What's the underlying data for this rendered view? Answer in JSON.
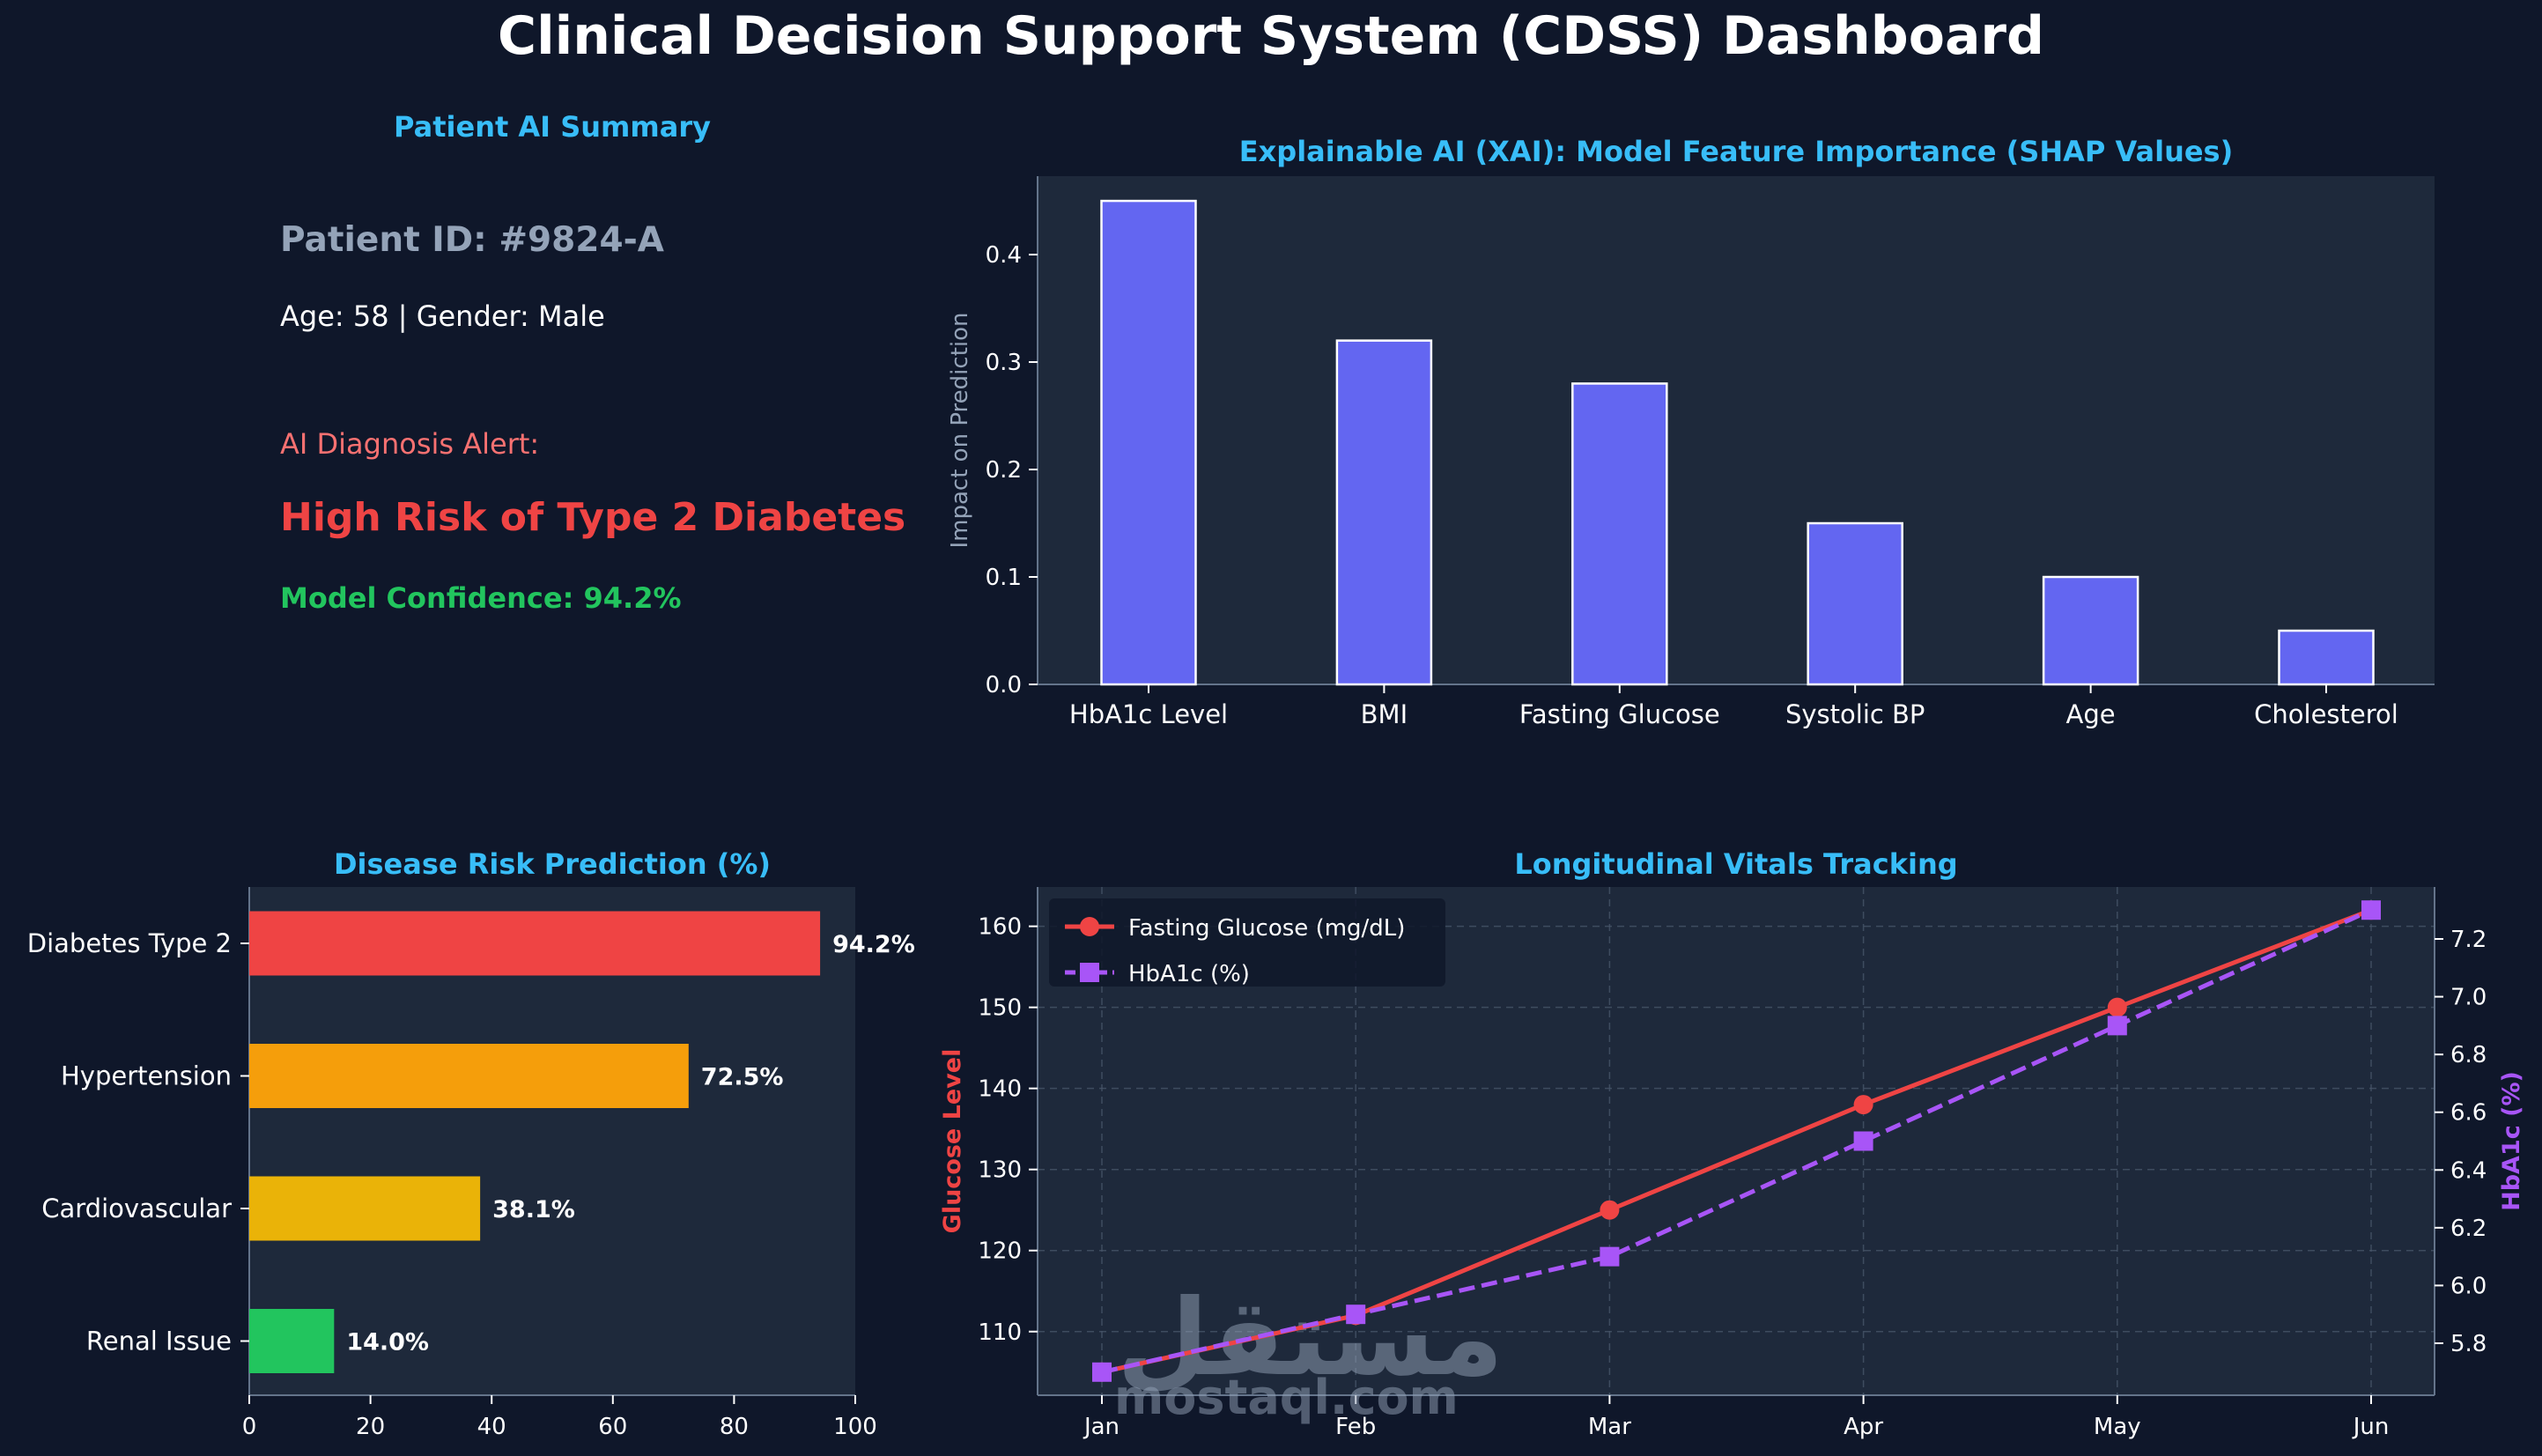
{
  "page": {
    "title": "Clinical Decision Support System (CDSS) Dashboard",
    "watermark": "mostaql.com",
    "watermark_arabic": "مستقل"
  },
  "colors": {
    "background": "#0f172a",
    "panel": "#1e293b",
    "accent_title": "#38bdf8",
    "shap_bar": "#6366f1",
    "glucose": "#ef4444",
    "hba1c": "#a855f7"
  },
  "summary": {
    "title": "Patient AI Summary",
    "patient_id": "Patient ID: #9824-A",
    "age_gender": "Age: 58 | Gender: Male",
    "alert_label": "AI Diagnosis Alert:",
    "alert_text": "High Risk of Type 2 Diabetes",
    "confidence": "Model Confidence: 94.2%"
  },
  "chart_data": [
    {
      "id": "shap",
      "type": "bar",
      "title": "Explainable AI (XAI): Model Feature Importance (SHAP Values)",
      "xlabel": "",
      "ylabel": "Impact on Prediction",
      "categories": [
        "HbA1c Level",
        "BMI",
        "Fasting Glucose",
        "Systolic BP",
        "Age",
        "Cholesterol"
      ],
      "values": [
        0.45,
        0.32,
        0.28,
        0.15,
        0.1,
        0.05
      ],
      "ylim": [
        0,
        0.473
      ],
      "yticks": [
        0.0,
        0.1,
        0.2,
        0.3,
        0.4
      ],
      "ytick_labels": [
        "0.0",
        "0.1",
        "0.2",
        "0.3",
        "0.4"
      ],
      "grid": false
    },
    {
      "id": "risk",
      "type": "bar",
      "orientation": "horizontal",
      "title": "Disease Risk Prediction (%)",
      "categories": [
        "Diabetes Type 2",
        "Hypertension",
        "Cardiovascular",
        "Renal Issue"
      ],
      "values": [
        94.2,
        72.5,
        38.1,
        14.0
      ],
      "value_labels": [
        "94.2%",
        "72.5%",
        "38.1%",
        "14.0%"
      ],
      "colors": [
        "#ef4444",
        "#f59e0b",
        "#eab308",
        "#22c55e"
      ],
      "xlim": [
        0,
        100
      ],
      "xticks": [
        0,
        20,
        40,
        60,
        80,
        100
      ],
      "xtick_labels": [
        "0",
        "20",
        "40",
        "60",
        "80",
        "100"
      ],
      "grid": false
    },
    {
      "id": "vitals",
      "type": "line",
      "title": "Longitudinal Vitals Tracking",
      "categories": [
        "Jan",
        "Feb",
        "Mar",
        "Apr",
        "May",
        "Jun"
      ],
      "ylabel": "Glucose Level",
      "y2label": "HbA1c (%)",
      "series": [
        {
          "name": "Fasting Glucose (mg/dL)",
          "axis": "left",
          "marker": "circle",
          "style": "solid",
          "color": "#ef4444",
          "values": [
            105,
            112,
            125,
            138,
            150,
            162
          ]
        },
        {
          "name": "HbA1c (%)",
          "axis": "right",
          "marker": "square",
          "style": "dashed",
          "color": "#a855f7",
          "values": [
            5.7,
            5.9,
            6.1,
            6.5,
            6.9,
            7.3
          ]
        }
      ],
      "ylim": [
        102.15,
        164.85
      ],
      "yticks": [
        110,
        120,
        130,
        140,
        150,
        160
      ],
      "ytick_labels": [
        "110",
        "120",
        "130",
        "140",
        "150",
        "160"
      ],
      "y2lim": [
        5.62,
        7.38
      ],
      "y2ticks": [
        5.8,
        6.0,
        6.2,
        6.4,
        6.6,
        6.8,
        7.0,
        7.2
      ],
      "y2tick_labels": [
        "5.8",
        "6.0",
        "6.2",
        "6.4",
        "6.6",
        "6.8",
        "7.0",
        "7.2"
      ],
      "legend": "top-left",
      "grid": true
    }
  ]
}
